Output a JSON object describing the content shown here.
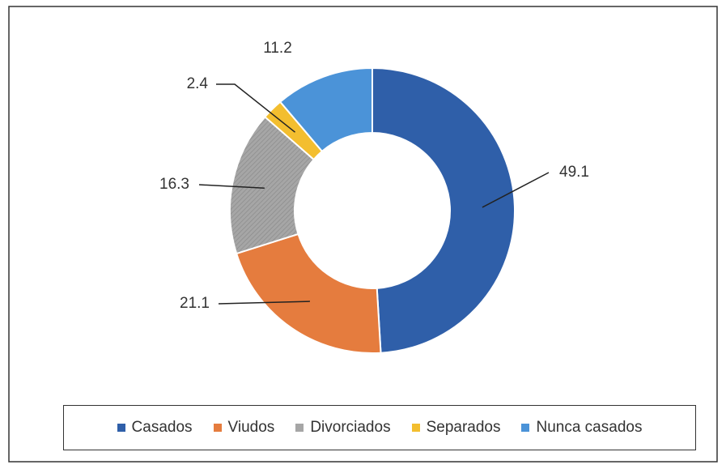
{
  "chart_data": {
    "type": "donut",
    "categories": [
      "Casados",
      "Viudos",
      "Divorciados",
      "Separados",
      "Nunca casados"
    ],
    "values": [
      49.1,
      21.1,
      16.3,
      2.4,
      11.2
    ],
    "colors": [
      "#2f5fa9",
      "#e57c3e",
      "#a6a6a6",
      "#f3be2f",
      "#4b93d8"
    ],
    "legend": "bottom"
  }
}
